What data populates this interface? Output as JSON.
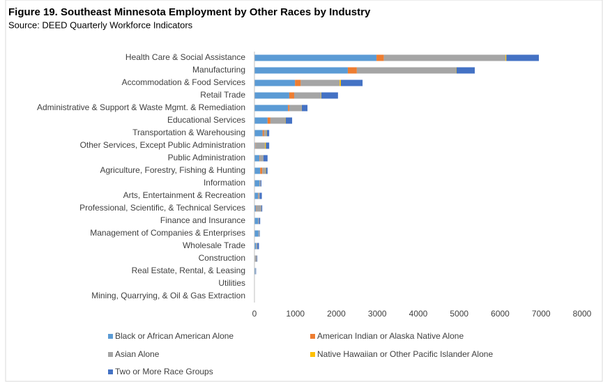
{
  "chart_data": {
    "type": "stacked_barh",
    "title": "Figure 19. Southeast Minnesota Employment by Other Races by Industry",
    "subtitle": "Source: DEED Quarterly Workforce Indicators",
    "categories": [
      "Health Care & Social Assistance",
      "Manufacturing",
      "Accommodation & Food Services",
      "Retail Trade",
      "Administrative & Support & Waste Mgmt. & Remediation",
      "Educational Services",
      "Transportation & Warehousing",
      "Other Services, Except Public Administration",
      "Public Administration",
      "Agriculture, Forestry, Fishing & Hunting",
      "Information",
      "Arts, Entertainment & Recreation",
      "Professional, Scientific, & Technical Services",
      "Finance and Insurance",
      "Management of Companies & Enterprises",
      "Wholesale Trade",
      "Construction",
      "Real Estate, Rental, & Leasing",
      "Utilities",
      "Mining, Quarrying, & Oil & Gas Extraction"
    ],
    "series": [
      {
        "name": "Black or African American Alone",
        "color": "#5b9bd5",
        "values": [
          2980,
          2280,
          990,
          850,
          820,
          320,
          200,
          20,
          120,
          140,
          120,
          90,
          40,
          90,
          100,
          40,
          10,
          20,
          0,
          0
        ]
      },
      {
        "name": "American Indian or Alaska Native Alone",
        "color": "#ed7d31",
        "values": [
          180,
          220,
          140,
          120,
          30,
          70,
          30,
          10,
          10,
          50,
          0,
          10,
          10,
          0,
          0,
          0,
          0,
          0,
          0,
          0
        ]
      },
      {
        "name": "Asian Alone",
        "color": "#a5a5a5",
        "values": [
          2970,
          2420,
          950,
          650,
          300,
          360,
          60,
          230,
          90,
          80,
          30,
          30,
          120,
          20,
          20,
          30,
          50,
          10,
          5,
          0
        ]
      },
      {
        "name": "Native Hawaiian or Other Pacific Islander Alone",
        "color": "#ffc000",
        "values": [
          20,
          10,
          30,
          10,
          5,
          10,
          10,
          20,
          0,
          10,
          0,
          0,
          0,
          0,
          0,
          0,
          0,
          0,
          0,
          0
        ]
      },
      {
        "name": "Two or More Race Groups",
        "color": "#4472c4",
        "values": [
          795,
          450,
          530,
          410,
          140,
          160,
          60,
          80,
          100,
          40,
          20,
          50,
          20,
          30,
          10,
          40,
          10,
          10,
          0,
          0
        ]
      }
    ],
    "xlim": [
      0,
      8000
    ],
    "xticks": [
      0,
      1000,
      2000,
      3000,
      4000,
      5000,
      6000,
      7000,
      8000
    ]
  }
}
